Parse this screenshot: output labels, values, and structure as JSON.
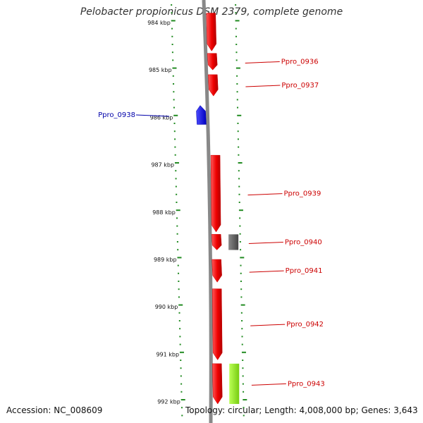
{
  "title": "Pelobacter propionicus DSM 2379, complete genome",
  "footer": {
    "accession": "Accession: NC_008609",
    "topology": "Topology: circular; Length: 4,008,000 bp; Genes: 3,643"
  },
  "colors": {
    "forward_gene": "#ee0000",
    "reverse_gene": "#1010e0",
    "gray_feature": "#666666",
    "green_feature": "#99ee22",
    "backbone": "#888888",
    "tick": "#228b22",
    "forward_label": "#cc0000",
    "reverse_label": "#0000aa"
  },
  "axis": {
    "unit": "kbp",
    "ticks": [
      "984 kbp",
      "985 kbp",
      "986 kbp",
      "987 kbp",
      "988 kbp",
      "989 kbp",
      "990 kbp",
      "991 kbp",
      "992 kbp"
    ]
  },
  "genes": [
    {
      "label": "",
      "strand": "forward",
      "start_kbp": 983.8,
      "end_kbp": 984.6
    },
    {
      "label": "Ppro_0936",
      "strand": "forward",
      "start_kbp": 984.65,
      "end_kbp": 985.0
    },
    {
      "label": "Ppro_0937",
      "strand": "forward",
      "start_kbp": 985.1,
      "end_kbp": 985.55
    },
    {
      "label": "Ppro_0938",
      "strand": "reverse",
      "start_kbp": 985.75,
      "end_kbp": 986.15
    },
    {
      "label": "Ppro_0939",
      "strand": "forward",
      "start_kbp": 986.8,
      "end_kbp": 988.42
    },
    {
      "label": "Ppro_0940",
      "strand": "forward",
      "start_kbp": 988.47,
      "end_kbp": 988.8
    },
    {
      "label": "Ppro_0941",
      "strand": "forward",
      "start_kbp": 989.0,
      "end_kbp": 989.48
    },
    {
      "label": "Ppro_0942",
      "strand": "forward",
      "start_kbp": 989.62,
      "end_kbp": 991.12
    },
    {
      "label": "Ppro_0943",
      "strand": "forward",
      "start_kbp": 991.2,
      "end_kbp": 992.05
    }
  ],
  "features": [
    {
      "label": "",
      "kind": "gray",
      "start_kbp": 988.47,
      "end_kbp": 988.8
    },
    {
      "label": "",
      "kind": "green",
      "start_kbp": 991.2,
      "end_kbp": 992.05
    }
  ]
}
